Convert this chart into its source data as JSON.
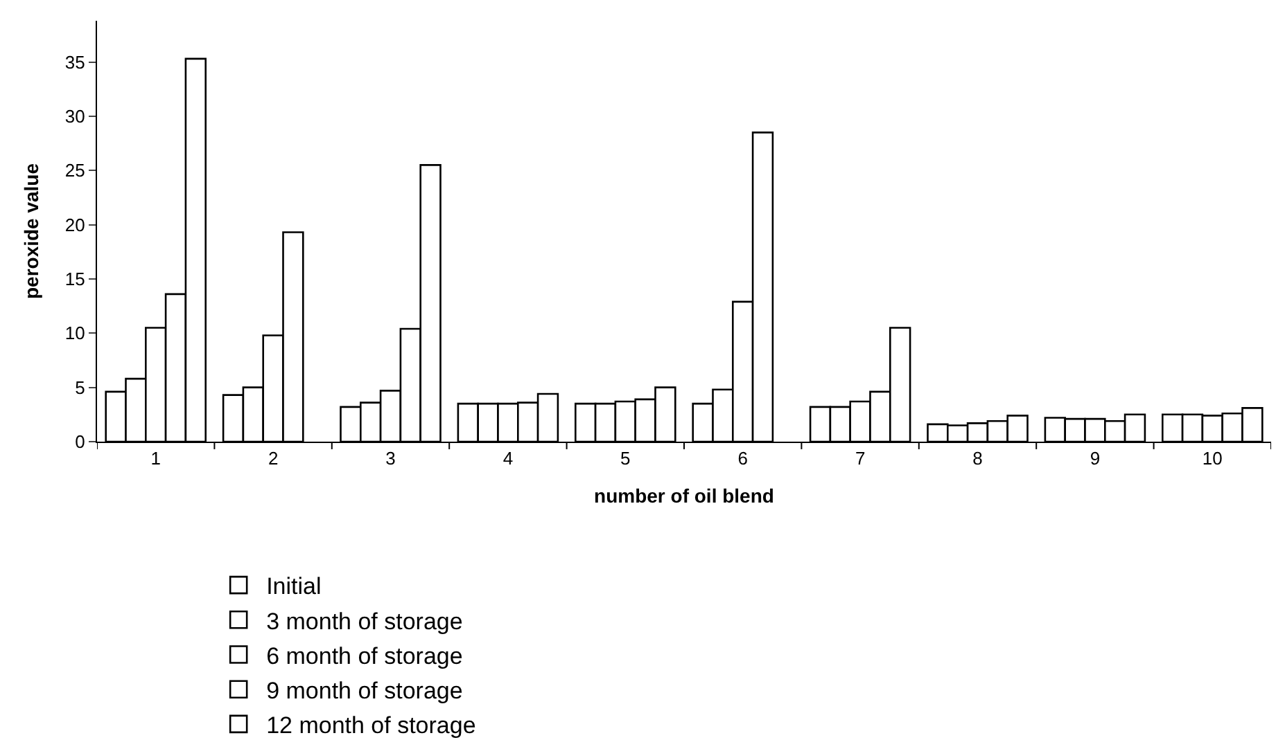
{
  "chart_data": {
    "type": "bar",
    "xlabel": "number of oil blend",
    "ylabel": "peroxide value",
    "categories": [
      "1",
      "2",
      "3",
      "4",
      "5",
      "6",
      "7",
      "8",
      "9",
      "10"
    ],
    "series": [
      {
        "name": "Initial",
        "color": "#ffffff",
        "values": [
          4.6,
          4.3,
          3.2,
          3.5,
          3.5,
          3.5,
          3.2,
          1.6,
          2.2,
          2.5
        ]
      },
      {
        "name": "3 month of storage",
        "color": "#ffffff",
        "values": [
          5.8,
          5.0,
          3.6,
          3.5,
          3.5,
          4.8,
          3.2,
          1.5,
          2.1,
          2.5
        ]
      },
      {
        "name": "6 month of storage",
        "color": "#ffffff",
        "values": [
          10.5,
          9.8,
          4.7,
          3.5,
          3.7,
          12.9,
          3.7,
          1.7,
          2.1,
          2.4
        ]
      },
      {
        "name": "9 month of storage",
        "color": "#ffffff",
        "values": [
          13.6,
          19.3,
          10.4,
          3.6,
          3.9,
          28.5,
          4.6,
          1.9,
          1.9,
          2.6
        ]
      },
      {
        "name": "12 month of storage",
        "color": "#ffffff",
        "values": [
          35.3,
          null,
          25.5,
          4.4,
          5.0,
          null,
          10.5,
          2.4,
          2.5,
          3.1
        ]
      }
    ],
    "ylim": [
      0,
      38.8
    ],
    "yticks": [
      0,
      5,
      10,
      15,
      20,
      25,
      30,
      35
    ],
    "grid": false,
    "legend": "bottom"
  }
}
